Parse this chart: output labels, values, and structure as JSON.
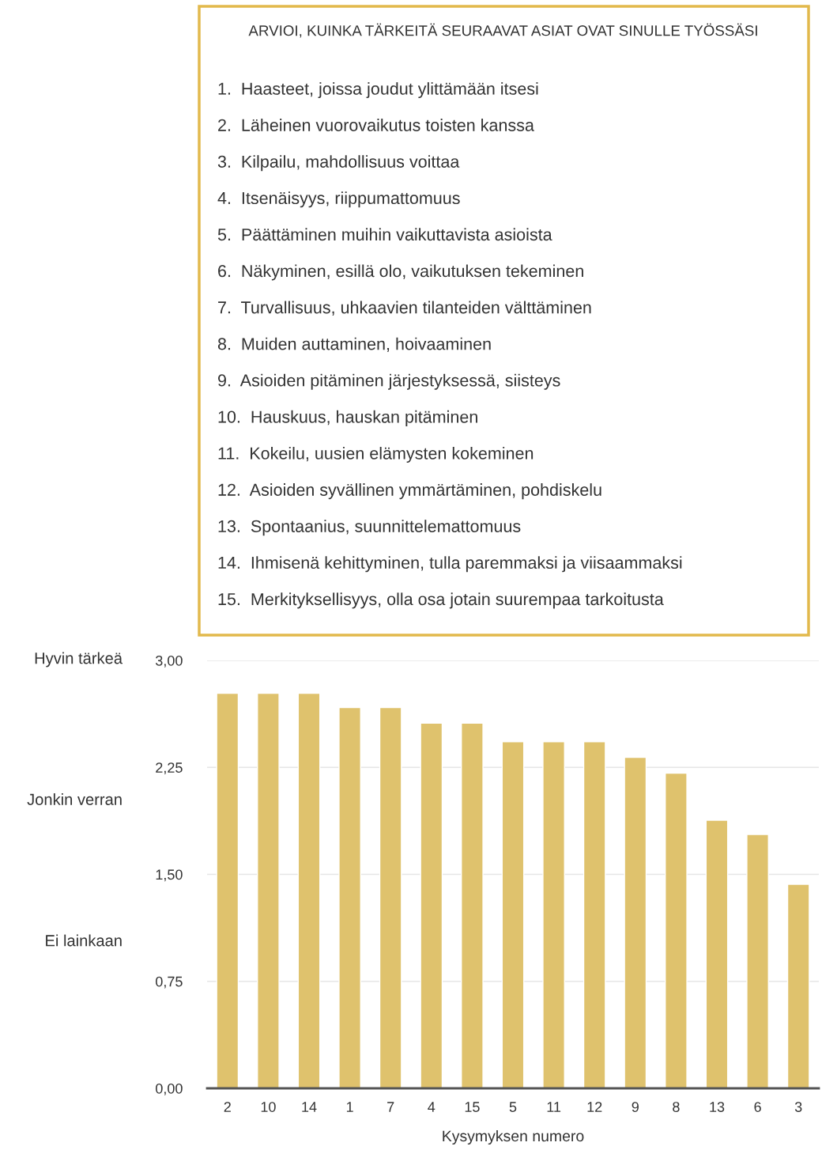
{
  "chart_data": {
    "type": "bar",
    "title": "ARVIOI, KUINKA TÄRKEITÄ SEURAAVAT ASIAT OVAT SINULLE TYÖSSÄSI",
    "xlabel": "Kysymyksen numero",
    "categories": [
      "2",
      "10",
      "14",
      "1",
      "7",
      "4",
      "15",
      "5",
      "11",
      "12",
      "9",
      "8",
      "13",
      "6",
      "3"
    ],
    "values": [
      2.77,
      2.77,
      2.77,
      2.67,
      2.67,
      2.56,
      2.56,
      2.43,
      2.43,
      2.43,
      2.32,
      2.21,
      1.88,
      1.78,
      1.43
    ],
    "color": "#dfc26d",
    "ylim": [
      0,
      3
    ],
    "yticks": [
      {
        "value": 0,
        "label": "0,00"
      },
      {
        "value": 0.75,
        "label": "0,75"
      },
      {
        "value": 1.5,
        "label": "1,50"
      },
      {
        "value": 2.25,
        "label": "2,25"
      },
      {
        "value": 3,
        "label": "3,00"
      }
    ],
    "grid": "y",
    "annotations": [
      "1.  Haasteet, joissa joudut ylittämään itsesi",
      "2.  Läheinen vuorovaikutus toisten kanssa",
      "3.  Kilpailu, mahdollisuus voittaa",
      "4.  Itsenäisyys, riippumattomuus",
      "5.  Päättäminen muihin vaikuttavista asioista",
      "6.  Näkyminen, esillä olo, vaikutuksen tekeminen",
      "7.  Turvallisuus, uhkaavien tilanteiden välttäminen",
      "8.  Muiden auttaminen, hoivaaminen",
      "9.  Asioiden pitäminen järjestyksessä, siisteys",
      "10.  Hauskuus, hauskan pitäminen",
      "11.  Kokeilu, uusien elämysten kokeminen",
      "12.  Asioiden syvällinen ymmärtäminen, pohdiskelu",
      "13.  Spontaanius, suunnittelemattomuus",
      "14.  Ihmisenä kehittyminen, tulla paremmaksi ja viisaammaksi",
      "15.  Merkityksellisyys, olla osa jotain suurempaa tarkoitusta",
      "Hyvin tärkeä",
      "Jonkin verran",
      "Ei lainkaan"
    ]
  }
}
